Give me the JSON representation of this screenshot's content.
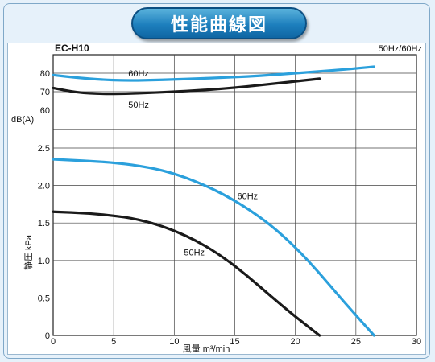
{
  "title": "性能曲線図",
  "colors": {
    "hz60": "#2ba0dc",
    "hz50": "#1a1a1a",
    "grid": "#444444",
    "badge": "#1d7fbd",
    "background": "#e6f1fa"
  },
  "chart_data": {
    "type": "line",
    "model": "EC-H10",
    "frequency_note": "50Hz/60Hz",
    "xlabel": "風量 m³/min",
    "x_ticks": [
      "0",
      "5",
      "10",
      "15",
      "20",
      "25",
      "30"
    ],
    "xlim": [
      0,
      30
    ],
    "grid": true,
    "pressure_panel": {
      "ylabel": "静圧 kPa",
      "ylim": [
        0,
        2.5
      ],
      "y_ticks": [
        "0",
        "0.5",
        "1.0",
        "1.5",
        "2.0",
        "2.5"
      ],
      "series": [
        {
          "name": "60Hz",
          "color": "#2ba0dc",
          "x": [
            0,
            5,
            8,
            10,
            12,
            14,
            16,
            18,
            20,
            22,
            24,
            26.5
          ],
          "y": [
            2.35,
            2.31,
            2.24,
            2.16,
            2.04,
            1.89,
            1.7,
            1.47,
            1.18,
            0.83,
            0.45,
            0
          ]
        },
        {
          "name": "50Hz",
          "color": "#1a1a1a",
          "x": [
            0,
            3,
            6,
            8,
            10,
            12,
            14,
            16,
            18,
            20,
            22
          ],
          "y": [
            1.65,
            1.63,
            1.58,
            1.51,
            1.4,
            1.25,
            1.05,
            0.8,
            0.52,
            0.25,
            0
          ]
        }
      ]
    },
    "noise_panel": {
      "ylabel": "dB(A)",
      "ylim": [
        60,
        80
      ],
      "y_ticks": [
        "60",
        "70",
        "80"
      ],
      "series": [
        {
          "name": "60Hz",
          "color": "#2ba0dc",
          "x": [
            0,
            2,
            4,
            6,
            8,
            10,
            12,
            14,
            16,
            18,
            20,
            22,
            24,
            26.5
          ],
          "y": [
            79,
            77.5,
            76.5,
            76,
            76.2,
            76.6,
            77.1,
            77.6,
            78.2,
            79,
            80,
            81,
            82,
            83.5
          ]
        },
        {
          "name": "50Hz",
          "color": "#1a1a1a",
          "x": [
            0,
            2,
            4,
            6,
            8,
            10,
            12,
            14,
            16,
            18,
            20,
            22
          ],
          "y": [
            72,
            69.5,
            68.8,
            68.9,
            69.4,
            70,
            70.7,
            71.6,
            72.8,
            74.2,
            75.6,
            77
          ]
        }
      ]
    }
  }
}
